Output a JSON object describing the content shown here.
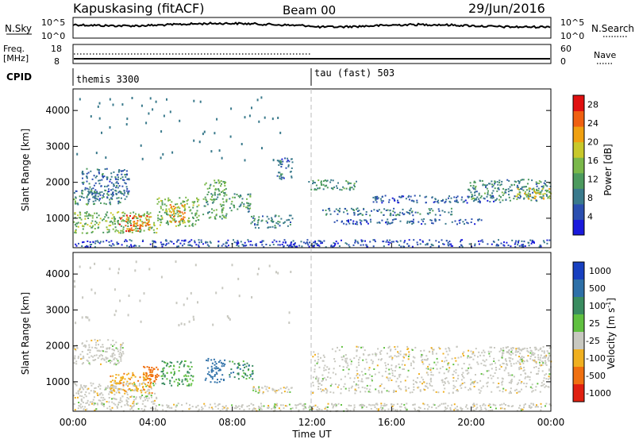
{
  "header": {
    "station": "Kapuskasing (fitACF)",
    "beam": "Beam 00",
    "date": "29/Jun/2016"
  },
  "noise_panel": {
    "left_label": "N.Sky",
    "right_label": "N.Search",
    "y_ticks": [
      "10^5",
      "10^0"
    ]
  },
  "freq_panel": {
    "left_label_1": "Freq.",
    "left_label_2": "[MHz]",
    "left_ticks": [
      "18",
      "8"
    ],
    "right_label": "Nave",
    "right_ticks": [
      "60",
      "0"
    ]
  },
  "cpid_panel": {
    "label": "CPID",
    "programs": [
      {
        "name": "themis 3300",
        "start_hour": 0
      },
      {
        "name": "tau (fast) 503",
        "start_hour": 12
      }
    ]
  },
  "colors": {
    "power_scale": [
      "#1a1adc",
      "#2b4fb0",
      "#3a7a8c",
      "#4c9a5e",
      "#7ab84a",
      "#c8c82a",
      "#f0a010",
      "#f06010",
      "#e01010"
    ],
    "velocity_scale": [
      "#1840c0",
      "#2e70a8",
      "#3a8c60",
      "#60c040",
      "#c8c8c0",
      "#f0b020",
      "#f07010",
      "#e02010"
    ]
  },
  "chart_data": [
    {
      "type": "heatmap",
      "panel": "power",
      "ylabel": "Slant Range [km]",
      "yticks": [
        1000,
        2000,
        3000,
        4000
      ],
      "ylim": [
        180,
        4600
      ],
      "xlim": [
        0,
        24
      ],
      "colorbar_label": "Power [dB]",
      "colorbar_ticks": [
        4,
        8,
        12,
        16,
        20,
        24,
        28
      ],
      "colorbar_range": [
        0,
        30
      ],
      "regions": [
        {
          "t0": 0.0,
          "t1": 4.2,
          "r0": 600,
          "r1": 1200,
          "value": 14
        },
        {
          "t0": 2.3,
          "t1": 3.9,
          "r0": 650,
          "r1": 1100,
          "value": 24
        },
        {
          "t0": 0.0,
          "t1": 2.5,
          "r0": 1400,
          "r1": 1800,
          "value": 10
        },
        {
          "t0": 0.4,
          "t1": 2.8,
          "r0": 1550,
          "r1": 2400,
          "value": 7
        },
        {
          "t0": 4.2,
          "t1": 6.3,
          "r0": 800,
          "r1": 1600,
          "value": 14
        },
        {
          "t0": 4.8,
          "t1": 5.6,
          "r0": 900,
          "r1": 1400,
          "value": 22
        },
        {
          "t0": 6.5,
          "t1": 7.7,
          "r0": 1000,
          "r1": 2100,
          "value": 12
        },
        {
          "t0": 7.8,
          "t1": 8.9,
          "r0": 1200,
          "r1": 1700,
          "value": 10
        },
        {
          "t0": 8.9,
          "t1": 11.0,
          "r0": 750,
          "r1": 1100,
          "value": 9
        },
        {
          "t0": 10.2,
          "t1": 11.0,
          "r0": 2100,
          "r1": 2700,
          "value": 7
        },
        {
          "t0": 11.8,
          "t1": 14.2,
          "r0": 1800,
          "r1": 2100,
          "value": 11
        },
        {
          "t0": 12.5,
          "t1": 19.0,
          "r0": 1100,
          "r1": 1300,
          "value": 8
        },
        {
          "t0": 13.0,
          "t1": 20.5,
          "r0": 850,
          "r1": 1000,
          "value": 6
        },
        {
          "t0": 15.0,
          "t1": 21.5,
          "r0": 1450,
          "r1": 1650,
          "value": 6
        },
        {
          "t0": 19.8,
          "t1": 24.0,
          "r0": 1500,
          "r1": 2100,
          "value": 10
        },
        {
          "t0": 22.2,
          "t1": 24.0,
          "r0": 1550,
          "r1": 1850,
          "value": 18
        },
        {
          "t0": 0.0,
          "t1": 24.0,
          "r0": 220,
          "r1": 420,
          "value": 5
        }
      ]
    },
    {
      "type": "heatmap",
      "panel": "velocity",
      "ylabel": "Slant Range [km]",
      "xlabel": "Time UT",
      "yticks": [
        1000,
        2000,
        3000,
        4000
      ],
      "ylim": [
        180,
        4600
      ],
      "xlim": [
        0,
        24
      ],
      "xtick_labels": [
        "00:00",
        "04:00",
        "08:00",
        "12:00",
        "16:00",
        "20:00",
        "00:00"
      ],
      "colorbar_label": "Velocity [m s^-1]",
      "colorbar_ticks": [
        "1000",
        "500",
        "100",
        "25",
        "-25",
        "-100",
        "-500",
        "-1000"
      ],
      "regions": [
        {
          "t0": 0.0,
          "t1": 4.2,
          "r0": 400,
          "r1": 1000,
          "value": 0
        },
        {
          "t0": 1.8,
          "t1": 4.0,
          "r0": 700,
          "r1": 1300,
          "value": -80
        },
        {
          "t0": 3.5,
          "t1": 4.3,
          "r0": 1000,
          "r1": 1450,
          "value": -300
        },
        {
          "t0": 0.0,
          "t1": 2.5,
          "r0": 1500,
          "r1": 2200,
          "value": 0
        },
        {
          "t0": 4.4,
          "t1": 6.0,
          "r0": 900,
          "r1": 1600,
          "value": 60
        },
        {
          "t0": 6.6,
          "t1": 7.6,
          "r0": 1000,
          "r1": 1700,
          "value": 200
        },
        {
          "t0": 7.8,
          "t1": 9.0,
          "r0": 1100,
          "r1": 1600,
          "value": 80
        },
        {
          "t0": 9.0,
          "t1": 11.0,
          "r0": 700,
          "r1": 900,
          "value": 0
        },
        {
          "t0": 12.0,
          "t1": 24.0,
          "r0": 700,
          "r1": 2000,
          "value": 0
        },
        {
          "t0": 21.5,
          "t1": 24.0,
          "r0": 1500,
          "r1": 2000,
          "value": 0
        },
        {
          "t0": 0.0,
          "t1": 24.0,
          "r0": 200,
          "r1": 420,
          "value": 0
        }
      ]
    }
  ]
}
